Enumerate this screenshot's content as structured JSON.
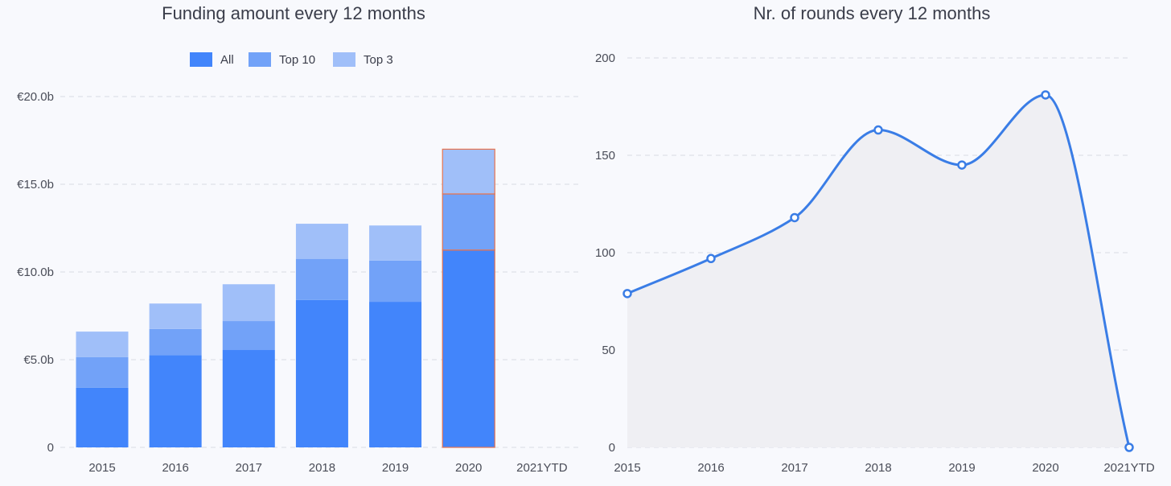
{
  "chart_data": [
    {
      "type": "bar",
      "title": "Funding amount every 12 months",
      "categories": [
        "2015",
        "2016",
        "2017",
        "2018",
        "2019",
        "2020",
        "2021YTD"
      ],
      "stacked": true,
      "series": [
        {
          "name": "All",
          "values": [
            3.4,
            5.25,
            5.55,
            8.4,
            8.3,
            11.25,
            0
          ],
          "color": "#4285fb"
        },
        {
          "name": "Top 10",
          "values": [
            1.75,
            1.5,
            1.65,
            2.35,
            2.35,
            3.2,
            0
          ],
          "color": "#72a2f8"
        },
        {
          "name": "Top 3",
          "values": [
            1.45,
            1.45,
            2.1,
            2.0,
            2.0,
            2.55,
            0
          ],
          "color": "#a0bff9"
        }
      ],
      "y_ticks": [
        "0",
        "€5.0b",
        "€10.0b",
        "€15.0b",
        "€20.0b"
      ],
      "ylim": [
        0,
        20
      ],
      "highlight_category": "2020",
      "highlight_color": "#e8744f",
      "grid": true,
      "legend": "top-center"
    },
    {
      "type": "line",
      "title": "Nr. of rounds every 12 months",
      "categories": [
        "2015",
        "2016",
        "2017",
        "2018",
        "2019",
        "2020",
        "2021YTD"
      ],
      "series": [
        {
          "values": [
            79,
            97,
            118,
            163,
            145,
            181,
            0
          ],
          "color": "#3a7de6"
        }
      ],
      "y_ticks": [
        "0",
        "50",
        "100",
        "150",
        "200"
      ],
      "ylim": [
        0,
        200
      ],
      "area_fill": "#efeff3",
      "grid": true,
      "smooth": true
    }
  ]
}
